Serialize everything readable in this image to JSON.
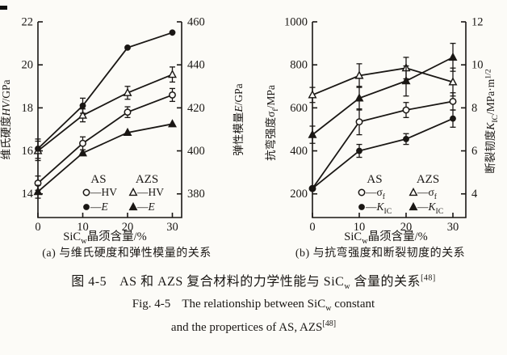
{
  "figure": {
    "caption_zh": {
      "fig_no": "图 4-5",
      "pre": "AS 和 AZS 复合材料的力学性能与 SiC",
      "sub": "w",
      "post": " 含量的关系",
      "sup": "[48]"
    },
    "caption_en1": {
      "fig_no": "Fig. 4-5",
      "pre": "The relationship between SiC",
      "sub": "w",
      "post": " constant"
    },
    "caption_en2": {
      "pre": "and the propertices of AS, AZS",
      "sup": "[48]"
    }
  },
  "chart_data": [
    {
      "id": "a",
      "type": "line",
      "subcaption": "(a) 与维氏硬度和弹性模量的关系",
      "x_ticks": [
        0,
        10,
        20,
        30
      ],
      "x_label_parts": [
        {
          "t": "SiC"
        },
        {
          "t": "w",
          "sub": true
        },
        {
          "t": "晶须含量/%"
        }
      ],
      "left_axis": {
        "title_parts": [
          {
            "t": "维氏硬度"
          },
          {
            "t": "HV",
            "i": true
          },
          {
            "t": "/GPa"
          }
        ],
        "range": [
          12.9,
          22
        ],
        "ticks": [
          14,
          16,
          18,
          20,
          22
        ]
      },
      "right_axis": {
        "title_parts": [
          {
            "t": "弹性模量"
          },
          {
            "t": "E",
            "i": true
          },
          {
            "t": "/GPa"
          }
        ],
        "range": [
          369,
          460
        ],
        "ticks": [
          380,
          400,
          420,
          440,
          460
        ]
      },
      "legend": {
        "headers": [
          "AS",
          "AZS"
        ],
        "rows": [
          [
            {
              "marker": "circle-open",
              "label_parts": [
                {
                  "t": "—HV"
                }
              ]
            },
            {
              "marker": "triangle-open",
              "label_parts": [
                {
                  "t": "—HV"
                }
              ]
            }
          ],
          [
            {
              "marker": "circle-filled",
              "label_parts": [
                {
                  "t": "—"
                },
                {
                  "t": "E",
                  "i": true
                }
              ]
            },
            {
              "marker": "triangle-filled",
              "label_parts": [
                {
                  "t": "—"
                },
                {
                  "t": "E",
                  "i": true
                }
              ]
            }
          ]
        ]
      },
      "series": [
        {
          "name": "AS-HV",
          "axis": "left",
          "marker": "circle-open",
          "x": [
            0,
            10,
            20,
            30
          ],
          "y": [
            14.5,
            16.35,
            17.8,
            18.6
          ],
          "err": [
            0.33,
            0.3,
            0.25,
            0.3
          ]
        },
        {
          "name": "AZS-HV",
          "axis": "left",
          "marker": "triangle-open",
          "x": [
            0,
            10,
            20,
            30
          ],
          "y": [
            16.0,
            17.65,
            18.7,
            19.55
          ],
          "err": [
            0.45,
            0.3,
            0.3,
            0.35
          ]
        },
        {
          "name": "AS-E",
          "axis": "right",
          "marker": "circle-filled",
          "x": [
            0,
            10,
            20,
            30
          ],
          "y": [
            401,
            421,
            448,
            455
          ],
          "err": [
            4.5,
            3.5,
            0,
            0
          ]
        },
        {
          "name": "AZS-E",
          "axis": "right",
          "marker": "triangle-filled",
          "x": [
            0,
            10,
            20,
            30
          ],
          "y": [
            381,
            399,
            408.5,
            412.5
          ],
          "err": [
            3,
            0,
            0,
            0
          ]
        }
      ]
    },
    {
      "id": "b",
      "type": "line",
      "subcaption": "(b) 与抗弯强度和断裂韧度的关系",
      "x_ticks": [
        0,
        10,
        20,
        30
      ],
      "x_label_parts": [
        {
          "t": "SiC"
        },
        {
          "t": "w",
          "sub": true
        },
        {
          "t": "晶须含量/%"
        }
      ],
      "left_axis": {
        "title_parts": [
          {
            "t": "抗弯强度σ"
          },
          {
            "t": "f",
            "sub": true
          },
          {
            "t": "/MPa"
          }
        ],
        "range": [
          90,
          1000
        ],
        "ticks": [
          200,
          400,
          600,
          800,
          1000
        ]
      },
      "right_axis": {
        "title_parts": [
          {
            "t": "断裂韧度"
          },
          {
            "t": "K",
            "i": true
          },
          {
            "t": "IC",
            "sub": true
          },
          {
            "t": "/MPa·m"
          },
          {
            "t": "1/2",
            "sup": true
          }
        ],
        "range": [
          2.9,
          12
        ],
        "ticks": [
          4,
          6,
          8,
          10,
          12
        ]
      },
      "legend": {
        "headers": [
          "AS",
          "AZS"
        ],
        "rows": [
          [
            {
              "marker": "circle-open",
              "label_parts": [
                {
                  "t": "—σ"
                },
                {
                  "t": "f",
                  "sub": true
                }
              ]
            },
            {
              "marker": "triangle-open",
              "label_parts": [
                {
                  "t": "—σ"
                },
                {
                  "t": "f",
                  "sub": true
                }
              ]
            }
          ],
          [
            {
              "marker": "circle-filled",
              "label_parts": [
                {
                  "t": "—"
                },
                {
                  "t": "K",
                  "i": true
                },
                {
                  "t": "IC",
                  "sub": true
                }
              ]
            },
            {
              "marker": "triangle-filled",
              "label_parts": [
                {
                  "t": "—"
                },
                {
                  "t": "K",
                  "i": true
                },
                {
                  "t": "IC",
                  "sub": true
                }
              ]
            }
          ]
        ]
      },
      "series": [
        {
          "name": "AS-sigma-f",
          "axis": "left",
          "marker": "circle-open",
          "x": [
            0,
            10,
            20,
            30
          ],
          "y": [
            225,
            535,
            590,
            630
          ],
          "err": [
            0,
            60,
            35,
            40
          ]
        },
        {
          "name": "AZS-sigma-f",
          "axis": "left",
          "marker": "triangle-open",
          "x": [
            0,
            10,
            20,
            30
          ],
          "y": [
            660,
            750,
            785,
            720
          ],
          "err": [
            35,
            55,
            50,
            65
          ]
        },
        {
          "name": "AS-KIC",
          "axis": "right",
          "marker": "circle-filled",
          "x": [
            0,
            10,
            20,
            30
          ],
          "y": [
            4.25,
            6.0,
            6.55,
            7.5
          ],
          "err": [
            0,
            0.3,
            0.25,
            0.4
          ]
        },
        {
          "name": "AZS-KIC",
          "axis": "right",
          "marker": "triangle-filled",
          "x": [
            0,
            10,
            20,
            30
          ],
          "y": [
            6.75,
            8.45,
            9.25,
            10.35
          ],
          "err": [
            0.4,
            0.55,
            0.7,
            0.65
          ]
        }
      ]
    }
  ]
}
